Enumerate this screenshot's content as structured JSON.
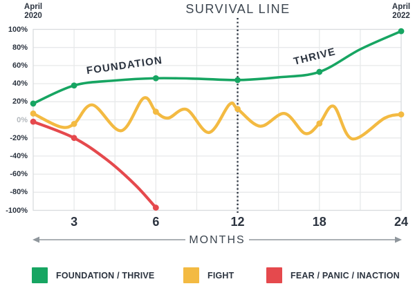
{
  "header": {
    "start_label_line1": "April",
    "start_label_line2": "2020",
    "end_label_line1": "April",
    "end_label_line2": "2022"
  },
  "chart_data": {
    "type": "line",
    "title": "SURVIVAL LINE",
    "xlabel": "MONTHS",
    "grid": true,
    "legend_position": "bottom",
    "ylim": [
      -100,
      100
    ],
    "y_tick_labels": [
      "100%",
      "80%",
      "60%",
      "40%",
      "20%",
      "0%",
      "-20%",
      "-40%",
      "-60%",
      "-80%",
      "-100%"
    ],
    "y_tick_values": [
      100,
      80,
      60,
      40,
      20,
      0,
      -20,
      -40,
      -60,
      -80,
      -100
    ],
    "x_tick_labels": [
      "3",
      "6",
      "12",
      "18",
      "24"
    ],
    "x_tick_months": [
      3,
      6,
      12,
      18,
      24
    ],
    "x_axis_note": "non-linear category spacing: months 0,3,6,12,18,24 at grid units 0,1,3,5,7,9",
    "month_to_unit": {
      "0": 0,
      "3": 1,
      "6": 3,
      "12": 5,
      "18": 7,
      "24": 9
    },
    "total_grid_units": 9,
    "survival_line_month": 12,
    "annotations": [
      {
        "text": "FOUNDATION",
        "unit": 2.23,
        "value": 60,
        "angle": -8
      },
      {
        "text": "THRIVE",
        "unit": 6.88,
        "value": 70,
        "angle": -14
      }
    ],
    "series": [
      {
        "name": "FOUNDATION / THRIVE",
        "color": "#17a562",
        "line_width": 3.6,
        "markers_months": [
          [
            0,
            18
          ],
          [
            3,
            38
          ],
          [
            6,
            46
          ],
          [
            12,
            44
          ],
          [
            18,
            53
          ],
          [
            24,
            98
          ]
        ],
        "path_units": [
          [
            0,
            18
          ],
          [
            1,
            38
          ],
          [
            2,
            43.5
          ],
          [
            3,
            46
          ],
          [
            4,
            45.5
          ],
          [
            5,
            44
          ],
          [
            6,
            47
          ],
          [
            7,
            53
          ],
          [
            8,
            78
          ],
          [
            9,
            98
          ]
        ]
      },
      {
        "name": "FIGHT",
        "color": "#f3ba42",
        "line_width": 4.4,
        "markers_months": [
          [
            0,
            7
          ],
          [
            3,
            -4.5
          ],
          [
            6,
            9
          ],
          [
            12,
            12
          ],
          [
            18,
            -4
          ],
          [
            24,
            6
          ]
        ],
        "path_units": [
          [
            0,
            7
          ],
          [
            0.65,
            -7.5
          ],
          [
            1,
            -4.5
          ],
          [
            1.45,
            16.5
          ],
          [
            2.15,
            -12
          ],
          [
            2.7,
            24
          ],
          [
            3,
            9
          ],
          [
            3.3,
            2
          ],
          [
            3.75,
            11.5
          ],
          [
            4.3,
            -14
          ],
          [
            4.8,
            17
          ],
          [
            5,
            12
          ],
          [
            5.55,
            -7
          ],
          [
            6.15,
            7
          ],
          [
            6.65,
            -15
          ],
          [
            7,
            -4
          ],
          [
            7.35,
            15
          ],
          [
            7.8,
            -21
          ],
          [
            8.6,
            2
          ],
          [
            9,
            6
          ]
        ]
      },
      {
        "name": "FEAR / PANIC / INACTION",
        "color": "#e5494d",
        "line_width": 4.2,
        "markers_months": [
          [
            0,
            -2
          ],
          [
            3,
            -20
          ],
          [
            6,
            -97
          ]
        ],
        "path_units": [
          [
            0,
            -2
          ],
          [
            1,
            -20
          ],
          [
            1.8,
            -44
          ],
          [
            2.5,
            -72
          ],
          [
            3,
            -97
          ]
        ]
      }
    ]
  },
  "legend": {
    "items": [
      {
        "label": "FOUNDATION / THRIVE",
        "color": "#17a562"
      },
      {
        "label": "FIGHT",
        "color": "#f3ba42"
      },
      {
        "label": "FEAR / PANIC / INACTION",
        "color": "#e5494d"
      }
    ]
  },
  "colors": {
    "text_dark": "#2b333f",
    "text_muted": "#3c454f",
    "zero_tick": "#b3b8bd",
    "gridline": "#e7e9ea",
    "plot_border": "#d8dbde",
    "arrow": "#8f969c",
    "survival_dotted": "#2b333f",
    "background": "#ffffff"
  }
}
